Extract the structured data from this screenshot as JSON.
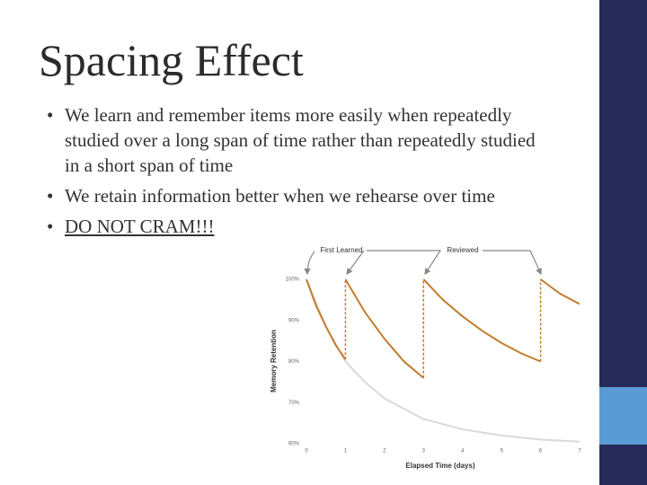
{
  "title": "Spacing Effect",
  "bullets": [
    {
      "text": "We learn and remember items more easily when repeatedly studied over a long span of time rather than repeatedly studied in a short span of time"
    },
    {
      "text": "We retain information better when we rehearse over time"
    },
    {
      "text": "DO NOT CRAM!!!"
    }
  ],
  "chart_data": {
    "type": "line",
    "xlabel": "Elapsed Time (days)",
    "ylabel": "Memory Retention",
    "annotations": [
      "First Learned",
      "Reviewed"
    ],
    "xlim": [
      0,
      7
    ],
    "xticks": [
      0,
      1,
      2,
      3,
      4,
      5,
      6,
      7
    ],
    "ylim": [
      60,
      100
    ],
    "yticks": [
      {
        "value": 60,
        "label": "60%"
      },
      {
        "value": 70,
        "label": "70%"
      },
      {
        "value": 80,
        "label": "80%"
      },
      {
        "value": 90,
        "label": "90%"
      },
      {
        "value": 100,
        "label": "100%"
      }
    ],
    "grid": false,
    "series": [
      {
        "color": "#d9d9d9",
        "x": [
          0,
          0.5,
          1,
          1.5,
          2,
          3,
          4,
          5,
          6,
          7
        ],
        "values": [
          100,
          88.5,
          80,
          75,
          71,
          66,
          63.5,
          62,
          61,
          60.5
        ]
      },
      {
        "color": "#c27c2c",
        "x": [
          0,
          0.25,
          0.5,
          0.75,
          1,
          null,
          1,
          1.5,
          2,
          2.5,
          3,
          null,
          3,
          3.5,
          4,
          4.5,
          5,
          5.5,
          6,
          null,
          6,
          6.5,
          7
        ],
        "values": [
          100,
          93.5,
          88.5,
          84,
          80.5,
          null,
          100,
          92,
          85.5,
          80,
          76,
          null,
          100,
          95,
          91,
          87.5,
          84.5,
          82,
          80,
          null,
          100,
          96.5,
          94
        ]
      }
    ]
  }
}
